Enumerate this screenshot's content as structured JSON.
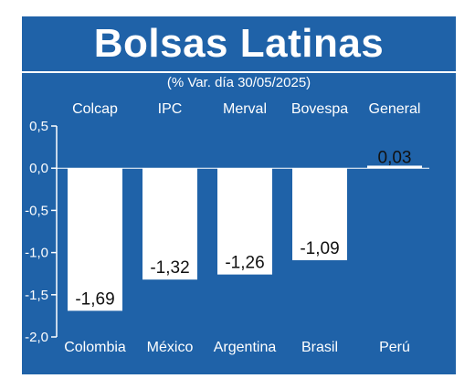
{
  "chart_data": {
    "type": "bar",
    "title": "Bolsas Latinas",
    "subtitle": "(% Var. día 30/05/2025)",
    "categories": [
      "Colombia",
      "México",
      "Argentina",
      "Brasil",
      "Perú"
    ],
    "index_names": [
      "Colcap",
      "IPC",
      "Merval",
      "Bovespa",
      "General"
    ],
    "values": [
      -1.69,
      -1.32,
      -1.26,
      -1.09,
      0.03
    ],
    "value_labels": [
      "-1,69",
      "-1,32",
      "-1,26",
      "-1,09",
      "0,03"
    ],
    "yticks": [
      "0,5",
      "0,0",
      "-0,5",
      "-1,0",
      "-1,5",
      "-2,0"
    ],
    "ylim": [
      -2.0,
      0.5
    ],
    "grid": false,
    "colors": {
      "background": "#1f62a8",
      "bar": "#ffffff",
      "text": "#ffffff",
      "value_text": "#111111"
    }
  }
}
